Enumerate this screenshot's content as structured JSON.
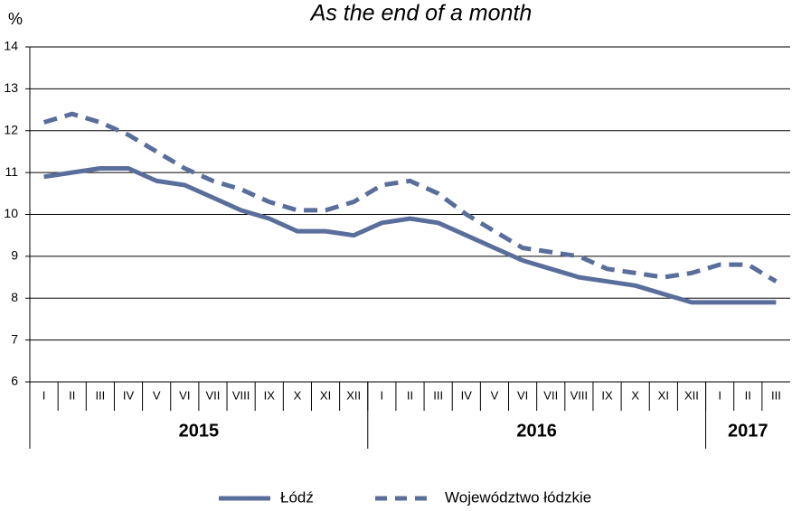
{
  "chart_data": {
    "type": "line",
    "title": "As the end of a month",
    "y_label": "%",
    "categories": [
      "I",
      "II",
      "III",
      "IV",
      "V",
      "VI",
      "VII",
      "VIII",
      "IX",
      "X",
      "XI",
      "XII",
      "I",
      "II",
      "III",
      "IV",
      "V",
      "VI",
      "VII",
      "VIII",
      "IX",
      "X",
      "XI",
      "XII",
      "I",
      "II",
      "III"
    ],
    "year_groups": [
      {
        "name": "2015",
        "months": 12
      },
      {
        "name": "2016",
        "months": 12
      },
      {
        "name": "2017",
        "months": 3
      }
    ],
    "series": [
      {
        "name": "Łódź",
        "color": "#5a6e9c",
        "dashed": false,
        "values": [
          10.9,
          11.0,
          11.1,
          11.1,
          10.8,
          10.7,
          10.4,
          10.1,
          9.9,
          9.6,
          9.6,
          9.5,
          9.8,
          9.9,
          9.8,
          9.5,
          9.2,
          8.9,
          8.7,
          8.5,
          8.4,
          8.3,
          8.1,
          7.9,
          7.9,
          7.9,
          7.9
        ]
      },
      {
        "name": "Województwo łódzkie",
        "color": "#5a6e9c",
        "dashed": true,
        "values": [
          12.2,
          12.4,
          12.2,
          11.9,
          11.5,
          11.1,
          10.8,
          10.6,
          10.3,
          10.1,
          10.1,
          10.3,
          10.7,
          10.8,
          10.5,
          10.0,
          9.6,
          9.2,
          9.1,
          9.0,
          8.7,
          8.6,
          8.5,
          8.6,
          8.8,
          8.8,
          8.4
        ]
      }
    ],
    "ylim": [
      6,
      14
    ],
    "yticks": [
      6,
      7,
      8,
      9,
      10,
      11,
      12,
      13,
      14
    ],
    "grid": true,
    "legend": "bottom"
  }
}
